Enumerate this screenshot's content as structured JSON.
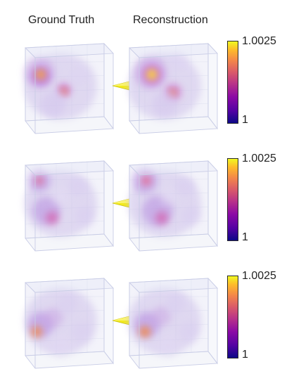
{
  "headers": {
    "ground_truth": "Ground Truth",
    "reconstruction": "Reconstruction"
  },
  "colorbar": {
    "max_label": "1.0025",
    "min_label": "1",
    "colormap": "plasma",
    "max_value": 1.0025,
    "min_value": 1
  },
  "colors": {
    "arrow": "#f2ea1c",
    "cube_edge": "#c9cde6",
    "haze": "#c7b8e6"
  },
  "rows": [
    {
      "id": 0
    },
    {
      "id": 1
    },
    {
      "id": 2
    }
  ]
}
